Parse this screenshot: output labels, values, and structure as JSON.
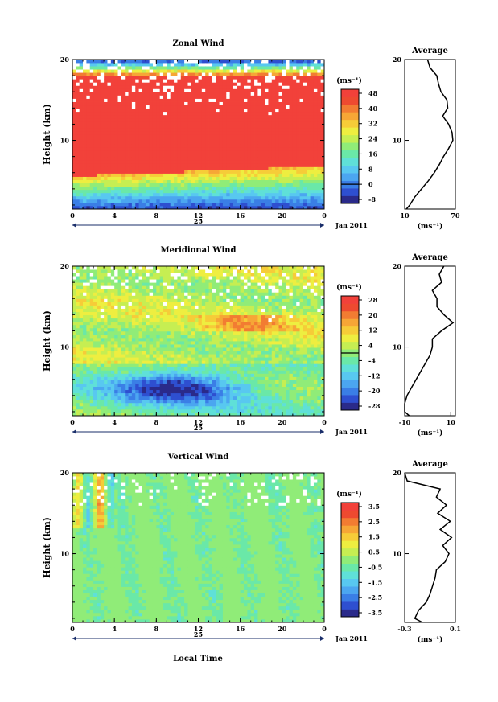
{
  "figure": {
    "xlabel": "Local Time",
    "date_label": "25",
    "date_suffix": "Jan 2011",
    "x_ticks": [
      "0",
      "4",
      "8",
      "12",
      "16",
      "20",
      "0"
    ],
    "unit_label": "(ms⁻¹)",
    "profile_title": "Average",
    "profile_unit": "(ms⁻¹)",
    "ylabel": "Height (km)",
    "y_ticks": [
      "10",
      "20"
    ]
  },
  "chart_data": [
    {
      "type": "heatmap",
      "title": "Zonal Wind",
      "x_range_hours": [
        0,
        24
      ],
      "y_range_km": [
        1.5,
        20
      ],
      "colorbar": {
        "ticks": [
          "48",
          "40",
          "32",
          "24",
          "16",
          "8",
          "0",
          "-8"
        ],
        "levels": [
          -12,
          -8,
          -4,
          0,
          4,
          8,
          12,
          16,
          20,
          24,
          28,
          32,
          36,
          40,
          44,
          48
        ],
        "contour_at": 0
      },
      "profile": {
        "title": "Average",
        "x_range": [
          10,
          70
        ],
        "x_ticks": [
          "10",
          "70"
        ],
        "heights_km": [
          1.5,
          2,
          3,
          4,
          5,
          6,
          7,
          8,
          9,
          10,
          11,
          12,
          13,
          14,
          15,
          16,
          17,
          18,
          19,
          20
        ],
        "values": [
          12,
          16,
          22,
          30,
          38,
          45,
          51,
          56,
          62,
          67,
          66,
          62,
          55,
          61,
          60,
          53,
          50,
          48,
          40,
          37
        ]
      }
    },
    {
      "type": "heatmap",
      "title": "Meridional Wind",
      "x_range_hours": [
        0,
        24
      ],
      "y_range_km": [
        1.5,
        20
      ],
      "colorbar": {
        "ticks": [
          "28",
          "20",
          "12",
          "4",
          "-4",
          "-12",
          "-20",
          "-28"
        ],
        "levels": [
          -32,
          -28,
          -24,
          -20,
          -16,
          -12,
          -8,
          -4,
          0,
          4,
          8,
          12,
          16,
          20,
          24,
          28
        ],
        "contour_at": 0
      },
      "profile": {
        "title": "Average",
        "x_range": [
          -10,
          12
        ],
        "x_ticks": [
          "-10",
          "10"
        ],
        "heights_km": [
          1.5,
          2,
          3,
          4,
          5,
          6,
          7,
          8,
          9,
          10,
          11,
          12,
          13,
          14,
          15,
          16,
          17,
          18,
          19,
          20
        ],
        "values": [
          -8,
          -10,
          -10,
          -9,
          -7,
          -5,
          -3,
          -1,
          1,
          2,
          2,
          6,
          11,
          7,
          4,
          4,
          2,
          6,
          5,
          7
        ]
      }
    },
    {
      "type": "heatmap",
      "title": "Vertical Wind",
      "x_range_hours": [
        0,
        24
      ],
      "y_range_km": [
        1.5,
        20
      ],
      "colorbar": {
        "ticks": [
          "3.5",
          "2.5",
          "1.5",
          "0.5",
          "-0.5",
          "-1.5",
          "-2.5",
          "-3.5"
        ],
        "levels": [
          -4,
          -3.5,
          -3,
          -2.5,
          -2,
          -1.5,
          -1,
          -0.5,
          0,
          0.5,
          1,
          1.5,
          2,
          2.5,
          3,
          3.5,
          4
        ],
        "contour_at": null
      },
      "profile": {
        "title": "Average",
        "x_range": [
          -0.3,
          0.1
        ],
        "x_ticks": [
          "-0.3",
          "0.1"
        ],
        "heights_km": [
          1.5,
          2,
          3,
          4,
          5,
          6,
          7,
          8,
          9,
          10,
          11,
          12,
          13,
          14,
          15,
          16,
          17,
          18,
          19,
          20
        ],
        "values": [
          -0.16,
          -0.22,
          -0.19,
          -0.13,
          -0.1,
          -0.08,
          -0.06,
          -0.05,
          0.02,
          0.05,
          0.0,
          0.07,
          -0.02,
          0.06,
          -0.04,
          0.03,
          -0.05,
          -0.02,
          -0.28,
          -0.3
        ]
      }
    }
  ],
  "colors": {
    "palette": [
      "#2a2a8a",
      "#2e4fd0",
      "#3a7ee6",
      "#4ba6f0",
      "#58c8f0",
      "#5fe0d8",
      "#6ae8a8",
      "#90ec78",
      "#c6ee52",
      "#eeee40",
      "#f6cc38",
      "#f6a636",
      "#f27c32",
      "#ee4a30",
      "#f2413a"
    ]
  }
}
